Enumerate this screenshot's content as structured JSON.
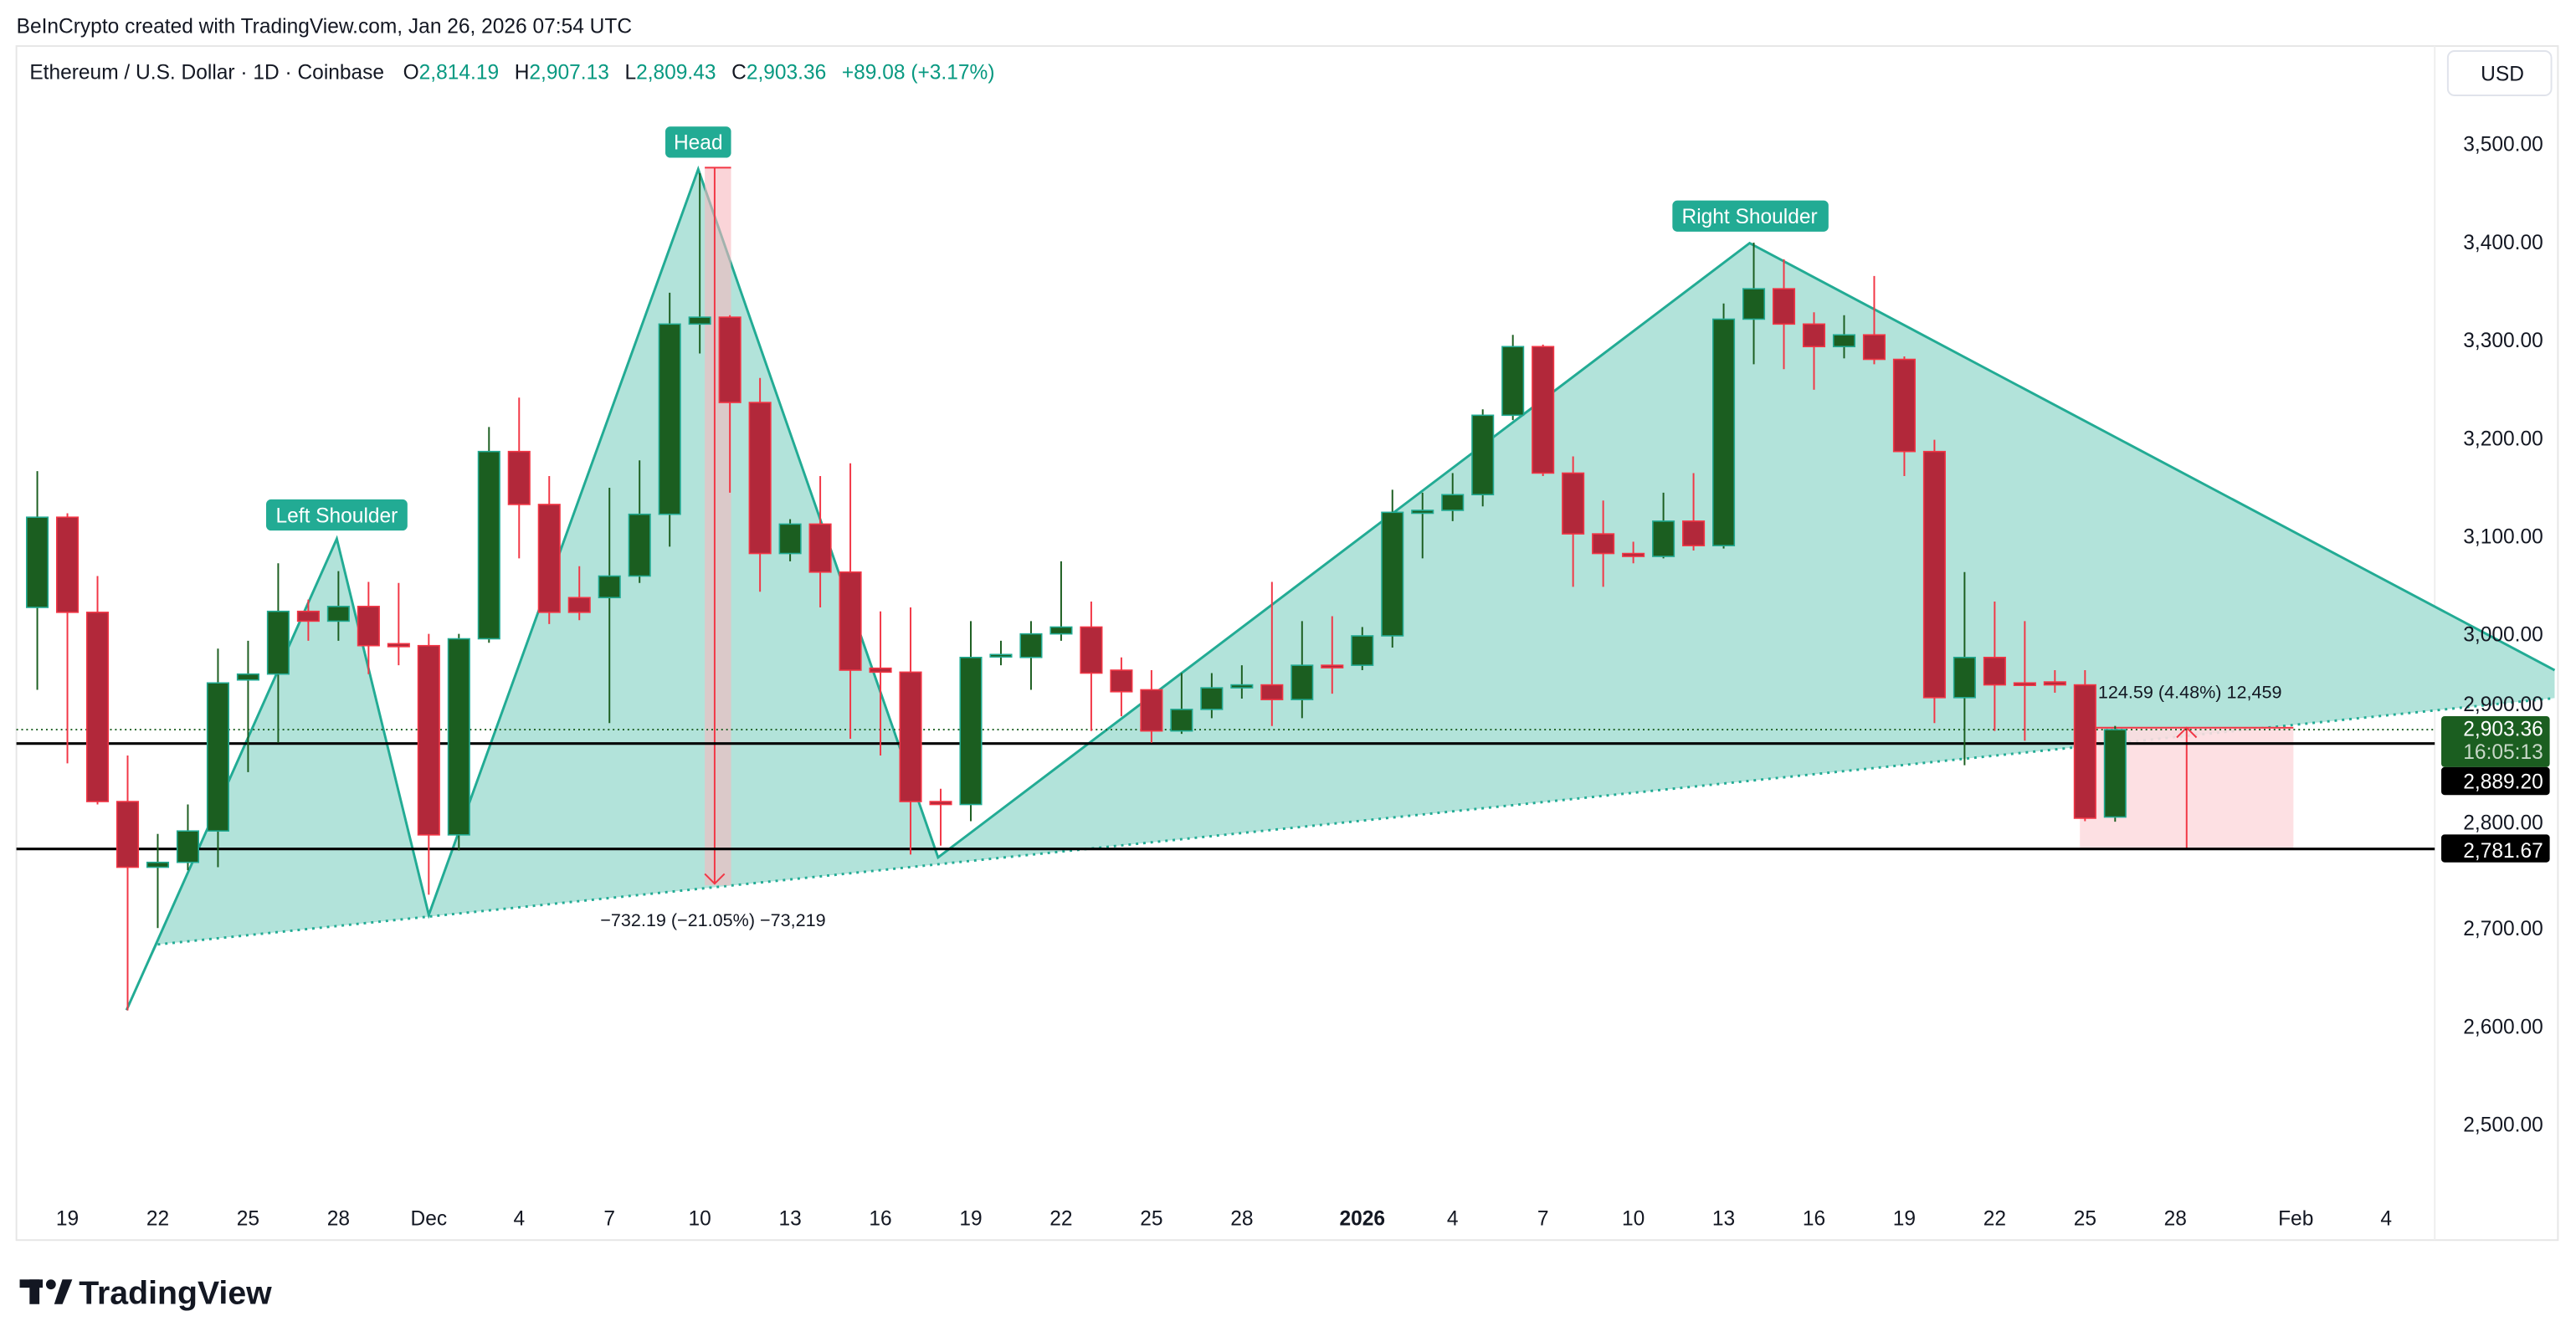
{
  "attribution": "BeInCrypto created with TradingView.com, Jan 26, 2026 07:54 UTC",
  "legend": {
    "symbol": "Ethereum / U.S. Dollar · 1D · Coinbase",
    "o_label": "O",
    "o": "2,814.19",
    "h_label": "H",
    "h": "2,907.13",
    "l_label": "L",
    "l": "2,809.43",
    "c_label": "C",
    "c": "2,903.36",
    "change": "+89.08 (+3.17%)"
  },
  "currency_button": "USD",
  "brand": "TradingView",
  "colors": {
    "up": "#1b5e20",
    "down": "#b2283a",
    "down_border": "#f23645",
    "pattern_fill": "#b2e3da",
    "pattern_line": "#22ab94",
    "measure_fill": "#fddde0"
  },
  "annotations": {
    "left_shoulder": "Left Shoulder",
    "head": "Head",
    "right_shoulder": "Right Shoulder",
    "head_measure": "−732.19 (−21.05%) −73,219",
    "right_measure": "124.59 (4.48%) 12,459"
  },
  "price_labels": {
    "last": "2,903.36",
    "countdown": "16:05:13",
    "line1": "2,889.20",
    "line2": "2,781.67"
  },
  "chart_data": {
    "type": "candlestick",
    "ylim": [
      2400,
      3560
    ],
    "y_ticks": [
      "3,500.00",
      "3,400.00",
      "3,300.00",
      "3,200.00",
      "3,100.00",
      "3,000.00",
      "2,900.00",
      "2,800.00",
      "2,700.00",
      "2,600.00",
      "2,500.00"
    ],
    "x_ticks": [
      "19",
      "22",
      "25",
      "28",
      "Dec",
      "4",
      "7",
      "10",
      "13",
      "16",
      "19",
      "22",
      "25",
      "28",
      "2026",
      "4",
      "7",
      "10",
      "13",
      "16",
      "19",
      "22",
      "25",
      "28",
      "Feb",
      "4"
    ],
    "horizontal_lines": [
      2889.2,
      2781.67
    ],
    "start_date": "2025-11-18",
    "ohlc": [
      [
        3028,
        3167,
        2944,
        3120
      ],
      [
        3120,
        3124,
        2869,
        3023
      ],
      [
        3023,
        3060,
        2827,
        2830
      ],
      [
        2830,
        2877,
        2617,
        2763
      ],
      [
        2763,
        2797,
        2701,
        2768
      ],
      [
        2768,
        2827,
        2760,
        2800
      ],
      [
        2800,
        2986,
        2763,
        2951
      ],
      [
        2954,
        2994,
        2860,
        2960
      ],
      [
        2960,
        3073,
        2890,
        3024
      ],
      [
        3024,
        3036,
        2994,
        3014
      ],
      [
        3014,
        3065,
        2994,
        3029
      ],
      [
        3029,
        3054,
        2960,
        2989
      ],
      [
        2991,
        3053,
        2969,
        2988
      ],
      [
        2989,
        3001,
        2735,
        2796
      ],
      [
        2796,
        3001,
        2780,
        2996
      ],
      [
        2996,
        3212,
        2992,
        3187
      ],
      [
        3187,
        3242,
        3078,
        3133
      ],
      [
        3133,
        3162,
        3011,
        3023
      ],
      [
        3038,
        3070,
        3015,
        3023
      ],
      [
        3038,
        3150,
        2910,
        3060
      ],
      [
        3060,
        3178,
        3053,
        3123
      ],
      [
        3123,
        3349,
        3090,
        3317
      ],
      [
        3317,
        3471,
        3287,
        3324
      ],
      [
        3324,
        3326,
        3145,
        3237
      ],
      [
        3237,
        3262,
        3044,
        3083
      ],
      [
        3083,
        3118,
        3075,
        3113
      ],
      [
        3113,
        3162,
        3028,
        3064
      ],
      [
        3064,
        3175,
        2894,
        2964
      ],
      [
        2966,
        3024,
        2877,
        2962
      ],
      [
        2962,
        3028,
        2776,
        2830
      ],
      [
        2830,
        2843,
        2785,
        2827
      ],
      [
        2827,
        3014,
        2810,
        2977
      ],
      [
        2978,
        2994,
        2969,
        2980
      ],
      [
        2977,
        3014,
        2944,
        3001
      ],
      [
        3001,
        3075,
        2994,
        3008
      ],
      [
        3008,
        3034,
        2902,
        2961
      ],
      [
        2964,
        2977,
        2917,
        2942
      ],
      [
        2944,
        2964,
        2890,
        2902
      ],
      [
        2902,
        2961,
        2899,
        2924
      ],
      [
        2924,
        2961,
        2915,
        2946
      ],
      [
        2946,
        2969,
        2935,
        2949
      ],
      [
        2949,
        3054,
        2907,
        2934
      ],
      [
        2934,
        3014,
        2915,
        2969
      ],
      [
        2969,
        3019,
        2940,
        2967
      ],
      [
        2969,
        3008,
        2964,
        2999
      ],
      [
        2999,
        3148,
        2987,
        3125
      ],
      [
        3124,
        3145,
        3078,
        3127
      ],
      [
        3127,
        3165,
        3116,
        3143
      ],
      [
        3143,
        3230,
        3131,
        3224
      ],
      [
        3224,
        3306,
        3219,
        3294
      ],
      [
        3294,
        3296,
        3162,
        3165
      ],
      [
        3165,
        3182,
        3049,
        3103
      ],
      [
        3103,
        3137,
        3049,
        3083
      ],
      [
        3083,
        3095,
        3073,
        3080
      ],
      [
        3080,
        3145,
        3078,
        3116
      ],
      [
        3116,
        3165,
        3086,
        3091
      ],
      [
        3091,
        3338,
        3088,
        3322
      ],
      [
        3322,
        3400,
        3276,
        3353
      ],
      [
        3353,
        3383,
        3271,
        3317
      ],
      [
        3317,
        3329,
        3250,
        3294
      ],
      [
        3294,
        3326,
        3282,
        3306
      ],
      [
        3306,
        3366,
        3276,
        3281
      ],
      [
        3281,
        3284,
        3162,
        3187
      ],
      [
        3187,
        3199,
        2910,
        2936
      ],
      [
        2936,
        3064,
        2867,
        2977
      ],
      [
        2977,
        3034,
        2902,
        2949
      ],
      [
        2951,
        3014,
        2892,
        2949
      ],
      [
        2952,
        2964,
        2941,
        2949
      ],
      [
        2949,
        2964,
        2810,
        2813
      ],
      [
        2814.19,
        2907.13,
        2809.43,
        2903.36
      ]
    ]
  }
}
